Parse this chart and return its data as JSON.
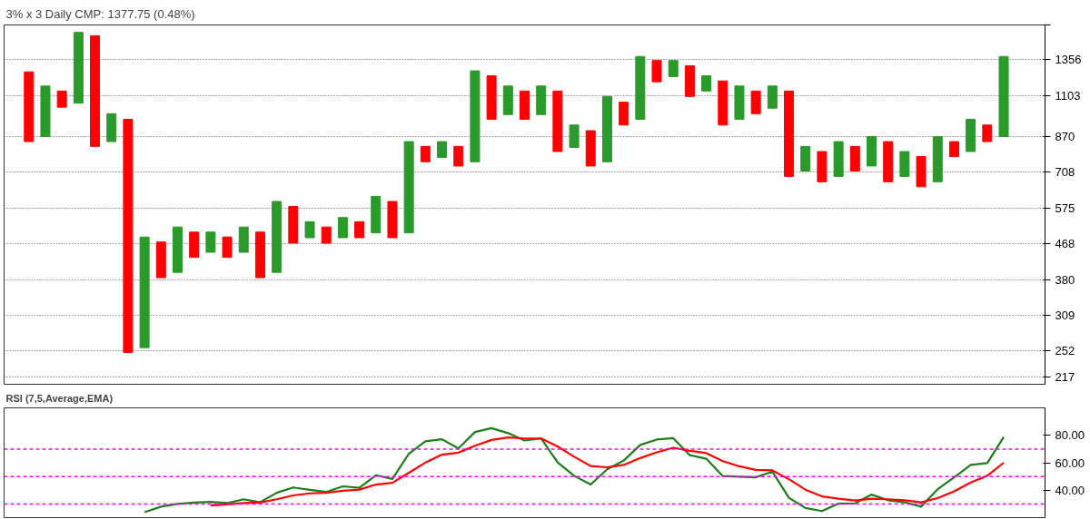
{
  "chart_data": [
    {
      "type": "bar",
      "title": "3% x 3 Daily CMP: 1377.75 (0.48%)",
      "categories": [
        null,
        null,
        null,
        null,
        null,
        null,
        null,
        null,
        null,
        null,
        null,
        null,
        null,
        null,
        null,
        null,
        null,
        null,
        null,
        null,
        null,
        null,
        null,
        null,
        null,
        null,
        null,
        null,
        null,
        null,
        null,
        null,
        null,
        null,
        null,
        null,
        null,
        null,
        null,
        null,
        null,
        null,
        null,
        null,
        null,
        null,
        null,
        null,
        null,
        null,
        null,
        null,
        null,
        null,
        null,
        null,
        null,
        null,
        null,
        null
      ],
      "base": [
        845,
        870,
        1031,
        1055,
        822,
        845,
        250,
        257,
        385,
        397,
        433,
        446,
        433,
        446,
        385,
        397,
        470,
        485,
        470,
        485,
        485,
        499,
        485,
        499,
        752,
        771,
        734,
        752,
        961,
        988,
        961,
        988,
        798,
        817,
        734,
        752,
        930,
        961,
        1194,
        1230,
        1097,
        1132,
        930,
        961,
        993,
        1025,
        691,
        713,
        670,
        691,
        713,
        734,
        670,
        691,
        651,
        670,
        775,
        798,
        845,
        870
      ],
      "values": [
        419,
        295,
        101,
        533,
        736,
        148,
        711,
        230,
        88,
        119,
        68,
        55,
        54,
        70,
        116,
        201,
        111,
        47,
        46,
        60,
        47,
        117,
        113,
        346,
        70,
        74,
        88,
        520,
        275,
        177,
        171,
        177,
        334,
        113,
        166,
        345,
        131,
        421,
        156,
        120,
        213,
        104,
        270,
        204,
        139,
        140,
        441,
        109,
        128,
        154,
        109,
        136,
        175,
        107,
        124,
        200,
        70,
        163,
        85,
        512
      ],
      "colors": [
        "#ff0000",
        "#2a9a2a",
        "#ff0000",
        "#2a9a2a",
        "#ff0000",
        "#2a9a2a",
        "#ff0000",
        "#2a9a2a",
        "#ff0000",
        "#2a9a2a",
        "#ff0000",
        "#2a9a2a",
        "#ff0000",
        "#2a9a2a",
        "#ff0000",
        "#2a9a2a",
        "#ff0000",
        "#2a9a2a",
        "#ff0000",
        "#2a9a2a",
        "#ff0000",
        "#2a9a2a",
        "#ff0000",
        "#2a9a2a",
        "#ff0000",
        "#2a9a2a",
        "#ff0000",
        "#2a9a2a",
        "#ff0000",
        "#2a9a2a",
        "#ff0000",
        "#2a9a2a",
        "#ff0000",
        "#2a9a2a",
        "#ff0000",
        "#2a9a2a",
        "#ff0000",
        "#2a9a2a",
        "#ff0000",
        "#2a9a2a",
        "#ff0000",
        "#2a9a2a",
        "#ff0000",
        "#2a9a2a",
        "#ff0000",
        "#2a9a2a",
        "#ff0000",
        "#2a9a2a",
        "#ff0000",
        "#2a9a2a",
        "#ff0000",
        "#2a9a2a",
        "#ff0000",
        "#2a9a2a",
        "#ff0000",
        "#2a9a2a",
        "#ff0000",
        "#2a9a2a",
        "#ff0000",
        "#2a9a2a"
      ],
      "log": true,
      "ylim": [
        208,
        1658
      ],
      "yticks": [
        217,
        252,
        309,
        380,
        468,
        575,
        708,
        870,
        1103,
        1356,
        {
          "value": 1658,
          "label": null
        }
      ],
      "grid": "y",
      "tick_labels": "y"
    },
    {
      "type": "line",
      "title": "RSI (7,5,Average,EMA)",
      "categories": [
        null,
        null,
        null,
        null,
        null,
        null,
        null,
        null,
        null,
        null,
        null,
        null,
        null,
        null,
        null,
        null,
        null,
        null,
        null,
        null,
        null,
        null,
        null,
        null,
        null,
        null,
        null,
        null,
        null,
        null,
        null,
        null,
        null,
        null,
        null,
        null,
        null,
        null,
        null,
        null,
        null,
        null,
        null,
        null,
        null,
        null,
        null,
        null,
        null,
        null,
        null,
        null,
        null,
        null,
        null,
        null,
        null,
        null,
        null,
        null
      ],
      "series": [
        {
          "color": "#1a7f1a",
          "values": [
            null,
            null,
            null,
            null,
            null,
            null,
            null,
            24,
            28,
            30,
            31,
            31.5,
            30.6,
            33.4,
            31.2,
            38.1,
            42,
            40.2,
            38.7,
            42.8,
            41.7,
            50.9,
            48.2,
            66.6,
            75.6,
            77.1,
            70.4,
            82.4,
            85.2,
            81.6,
            76.2,
            77.7,
            60.2,
            50.5,
            44.1,
            55.2,
            61.6,
            73,
            76.9,
            77.9,
            65.5,
            62.9,
            50.3,
            49.9,
            49.4,
            53.5,
            34.5,
            27,
            24.8,
            30.2,
            30.4,
            36.8,
            32.7,
            31.2,
            28,
            40.7,
            49.4,
            58.4,
            59.7,
            78.8
          ]
        },
        {
          "color": "#ff0000",
          "values": [
            null,
            null,
            null,
            null,
            null,
            null,
            null,
            null,
            null,
            null,
            null,
            28.9,
            29.7,
            30.6,
            31,
            33.4,
            36.2,
            37.7,
            38.1,
            39.6,
            40.4,
            44.1,
            45.4,
            52.7,
            60.1,
            65.9,
            67.4,
            72.4,
            76.6,
            78.4,
            77.7,
            77.7,
            71.9,
            64.4,
            57.6,
            56.7,
            58.4,
            63.4,
            67.6,
            70.9,
            68.7,
            67,
            61.2,
            57.4,
            54.8,
            54.4,
            48,
            40.4,
            35.5,
            33.8,
            32.5,
            33.8,
            33.4,
            32.7,
            31.2,
            34.2,
            39.2,
            45.6,
            50.5,
            60
          ]
        }
      ],
      "ylim": [
        20,
        100
      ],
      "yticks": [
        {
          "value": 40,
          "label": "40.00"
        },
        {
          "value": 60,
          "label": "60.00"
        },
        {
          "value": 80,
          "label": "80.00"
        }
      ],
      "ref_lines": [
        {
          "axis": "y",
          "value": 70,
          "color": "#ff00ff",
          "line_style": "dashed"
        },
        {
          "axis": "y",
          "value": 50,
          "color": "#ff00ff",
          "line_style": "dashed"
        },
        {
          "axis": "y",
          "value": 30,
          "color": "#ff00ff",
          "line_style": "dashed"
        }
      ],
      "grid": false,
      "tick_labels": "y"
    }
  ]
}
